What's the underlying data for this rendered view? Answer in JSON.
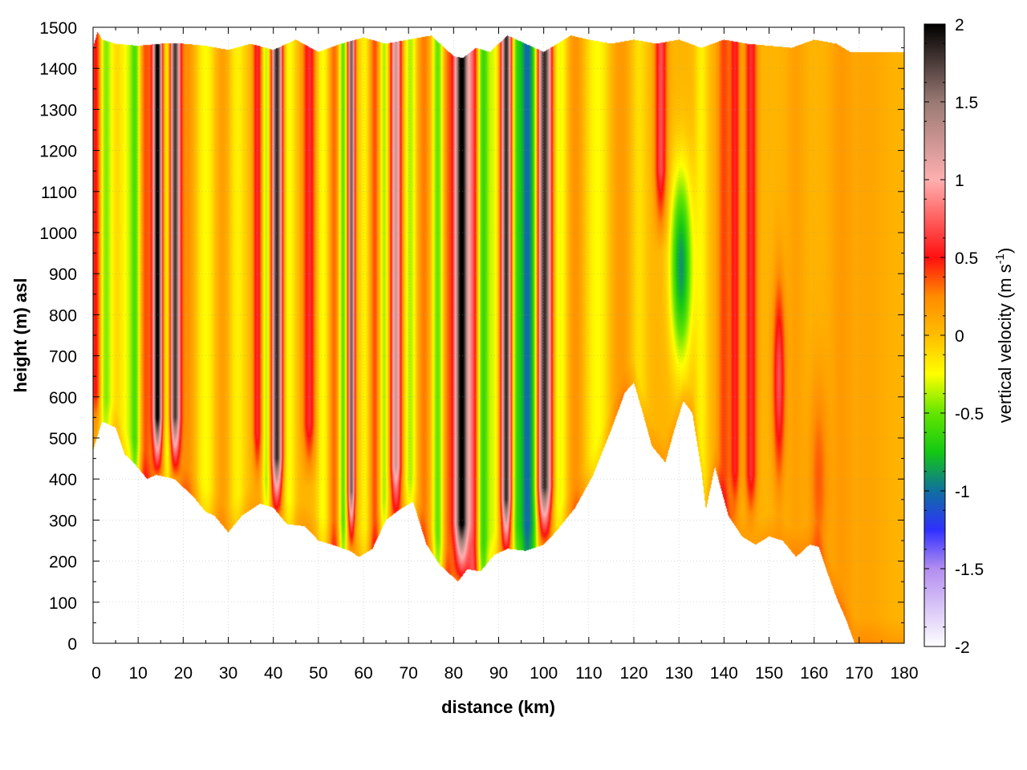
{
  "chart_data": {
    "type": "heatmap",
    "title": "",
    "xlabel": "distance (km)",
    "ylabel": "height (m) asl",
    "xlim": [
      0,
      180
    ],
    "ylim": [
      0,
      1500
    ],
    "xticks": [
      0,
      10,
      20,
      30,
      40,
      50,
      60,
      70,
      80,
      90,
      100,
      110,
      120,
      130,
      140,
      150,
      160,
      170,
      180
    ],
    "yticks": [
      0,
      100,
      200,
      300,
      400,
      500,
      600,
      700,
      800,
      900,
      1000,
      1100,
      1200,
      1300,
      1400,
      1500
    ],
    "grid": true,
    "colorbar": {
      "label": "vertical velocity (m s",
      "label_superscript": "-1",
      "label_suffix": ")",
      "range": [
        -2,
        2
      ],
      "ticks": [
        2,
        1.5,
        1,
        0.5,
        0,
        -0.5,
        -1,
        -1.5,
        -2
      ],
      "stops": [
        {
          "value": -2.0,
          "color": "#ffffff"
        },
        {
          "value": -1.5,
          "color": "#b48ef0"
        },
        {
          "value": -1.25,
          "color": "#3030ff"
        },
        {
          "value": -1.0,
          "color": "#1070a0"
        },
        {
          "value": -0.75,
          "color": "#14c814"
        },
        {
          "value": -0.5,
          "color": "#64e600"
        },
        {
          "value": -0.25,
          "color": "#ffff00"
        },
        {
          "value": 0.0,
          "color": "#ffbe00"
        },
        {
          "value": 0.25,
          "color": "#ff8c00"
        },
        {
          "value": 0.5,
          "color": "#ff1010"
        },
        {
          "value": 1.0,
          "color": "#ffb0b0"
        },
        {
          "value": 1.5,
          "color": "#9a7a74"
        },
        {
          "value": 2.0,
          "color": "#000000"
        }
      ]
    },
    "ground_profile": {
      "distance_km": [
        0,
        2,
        5,
        7,
        9,
        12,
        14,
        18,
        22,
        25,
        27,
        30,
        33,
        37,
        40,
        43,
        47,
        50,
        53,
        57,
        59,
        62,
        65,
        68,
        71,
        74,
        77,
        81,
        83,
        86,
        89,
        92,
        96,
        100,
        103,
        107,
        111,
        115,
        118,
        120,
        122,
        124,
        127,
        129,
        131,
        133,
        135,
        136,
        138,
        141,
        144,
        147,
        150,
        153,
        156,
        159,
        161,
        163,
        165,
        167,
        169,
        180
      ],
      "height_m": [
        470,
        540,
        525,
        460,
        440,
        400,
        410,
        400,
        360,
        320,
        310,
        270,
        310,
        340,
        330,
        290,
        285,
        250,
        240,
        225,
        210,
        230,
        300,
        325,
        345,
        240,
        190,
        150,
        180,
        175,
        215,
        230,
        225,
        240,
        275,
        330,
        410,
        520,
        610,
        635,
        560,
        480,
        440,
        520,
        590,
        560,
        420,
        325,
        430,
        310,
        260,
        240,
        260,
        250,
        210,
        240,
        235,
        170,
        110,
        60,
        0,
        0
      ]
    },
    "top_profile": {
      "distance_km": [
        0,
        1,
        2,
        5,
        10,
        15,
        20,
        25,
        30,
        35,
        40,
        45,
        50,
        55,
        60,
        65,
        70,
        75,
        80,
        82,
        85,
        88,
        92,
        96,
        100,
        103,
        106,
        110,
        115,
        120,
        125,
        130,
        135,
        140,
        145,
        150,
        155,
        160,
        165,
        168,
        180
      ],
      "height_m": [
        1450,
        1490,
        1470,
        1460,
        1455,
        1460,
        1460,
        1455,
        1445,
        1460,
        1445,
        1470,
        1440,
        1460,
        1475,
        1460,
        1470,
        1480,
        1430,
        1425,
        1450,
        1440,
        1480,
        1460,
        1440,
        1460,
        1480,
        1470,
        1460,
        1470,
        1460,
        1470,
        1450,
        1470,
        1460,
        1455,
        1450,
        1470,
        1460,
        1440,
        1440
      ]
    },
    "velocity_features": [
      {
        "distance_km": 0.8,
        "peak": 0.7,
        "width_km": 1.2,
        "base_m": 520
      },
      {
        "distance_km": 2.5,
        "peak": -0.55,
        "width_km": 2.0
      },
      {
        "distance_km": 7.5,
        "peak": -0.3,
        "width_km": 2.0
      },
      {
        "distance_km": 9.5,
        "peak": -0.55,
        "width_km": 1.2
      },
      {
        "distance_km": 11.5,
        "peak": 0.35,
        "width_km": 1.5
      },
      {
        "distance_km": 14.3,
        "peak": 2.0,
        "width_km": 1.0,
        "base_m": 460
      },
      {
        "distance_km": 16.5,
        "peak": -0.35,
        "width_km": 0.8
      },
      {
        "distance_km": 18.2,
        "peak": 1.7,
        "width_km": 1.1,
        "base_m": 460
      },
      {
        "distance_km": 21.0,
        "peak": 0.2,
        "width_km": 2.0
      },
      {
        "distance_km": 25.0,
        "peak": -0.3,
        "width_km": 2.5
      },
      {
        "distance_km": 28.5,
        "peak": 0.15,
        "width_km": 2.0
      },
      {
        "distance_km": 32.0,
        "peak": -0.25,
        "width_km": 2.0
      },
      {
        "distance_km": 36.5,
        "peak": 0.55,
        "width_km": 1.0,
        "base_m": 420
      },
      {
        "distance_km": 38.5,
        "peak": -0.45,
        "width_km": 1.0
      },
      {
        "distance_km": 40.8,
        "peak": 1.8,
        "width_km": 1.2,
        "base_m": 360
      },
      {
        "distance_km": 43.5,
        "peak": -0.3,
        "width_km": 1.5
      },
      {
        "distance_km": 48.0,
        "peak": 0.55,
        "width_km": 1.4,
        "base_m": 440
      },
      {
        "distance_km": 51.0,
        "peak": -0.3,
        "width_km": 1.5
      },
      {
        "distance_km": 53.5,
        "peak": 0.3,
        "width_km": 1.2
      },
      {
        "distance_km": 55.5,
        "peak": -0.6,
        "width_km": 1.0
      },
      {
        "distance_km": 57.3,
        "peak": 1.6,
        "width_km": 0.8,
        "base_m": 280
      },
      {
        "distance_km": 60.5,
        "peak": -0.3,
        "width_km": 1.5
      },
      {
        "distance_km": 62.5,
        "peak": 0.4,
        "width_km": 1.5
      },
      {
        "distance_km": 64.5,
        "peak": -0.5,
        "width_km": 1.2
      },
      {
        "distance_km": 67.2,
        "peak": 1.2,
        "width_km": 1.2,
        "base_m": 340
      },
      {
        "distance_km": 70.5,
        "peak": -0.45,
        "width_km": 1.5
      },
      {
        "distance_km": 73.5,
        "peak": 0.25,
        "width_km": 2.0
      },
      {
        "distance_km": 76.5,
        "peak": -0.6,
        "width_km": 1.5
      },
      {
        "distance_km": 78.5,
        "peak": 0.3,
        "width_km": 1.2
      },
      {
        "distance_km": 81.8,
        "peak": 2.0,
        "width_km": 1.6,
        "base_m": 200
      },
      {
        "distance_km": 84.5,
        "peak": 0.6,
        "width_km": 1.2
      },
      {
        "distance_km": 86.5,
        "peak": -0.7,
        "width_km": 1.5
      },
      {
        "distance_km": 89.0,
        "peak": -0.3,
        "width_km": 1.2
      },
      {
        "distance_km": 91.7,
        "peak": 1.8,
        "width_km": 1.1,
        "base_m": 260
      },
      {
        "distance_km": 94.0,
        "peak": -0.55,
        "width_km": 1.2
      },
      {
        "distance_km": 96.3,
        "peak": -1.05,
        "width_km": 1.6
      },
      {
        "distance_km": 98.0,
        "peak": -0.4,
        "width_km": 1.0
      },
      {
        "distance_km": 100.2,
        "peak": 1.8,
        "width_km": 1.6,
        "base_m": 290
      },
      {
        "distance_km": 103.5,
        "peak": -0.35,
        "width_km": 2.0
      },
      {
        "distance_km": 107.0,
        "peak": 0.2,
        "width_km": 2.0
      },
      {
        "distance_km": 112.0,
        "peak": -0.3,
        "width_km": 3.0
      },
      {
        "distance_km": 117.0,
        "peak": 0.15,
        "width_km": 3.0
      },
      {
        "distance_km": 121.0,
        "peak": -0.2,
        "width_km": 2.0
      },
      {
        "distance_km": 126.0,
        "peak": 0.65,
        "width_km": 1.3,
        "top_only_to_m": 950
      },
      {
        "distance_km": 130.5,
        "peak": -0.95,
        "width_km": 2.4,
        "band_m": [
          650,
          1190
        ]
      },
      {
        "distance_km": 135.0,
        "peak": -0.25,
        "width_km": 1.5
      },
      {
        "distance_km": 140.0,
        "peak": 0.35,
        "width_km": 1.5
      },
      {
        "distance_km": 142.5,
        "peak": 0.5,
        "width_km": 1.0,
        "base_m": 330
      },
      {
        "distance_km": 146.0,
        "peak": 0.55,
        "width_km": 1.3,
        "base_m": 320
      },
      {
        "distance_km": 152.2,
        "peak": 0.65,
        "width_km": 1.3,
        "band_m": [
          360,
          920
        ]
      },
      {
        "distance_km": 156.0,
        "peak": 0.1,
        "width_km": 2.0
      },
      {
        "distance_km": 161.0,
        "peak": 0.3,
        "width_km": 2.0,
        "band_m": [
          100,
          700
        ]
      },
      {
        "distance_km": 166.0,
        "peak": 0.12,
        "width_km": 2.5
      },
      {
        "distance_km": 172.0,
        "peak": 0.08,
        "width_km": 4.0
      }
    ]
  }
}
